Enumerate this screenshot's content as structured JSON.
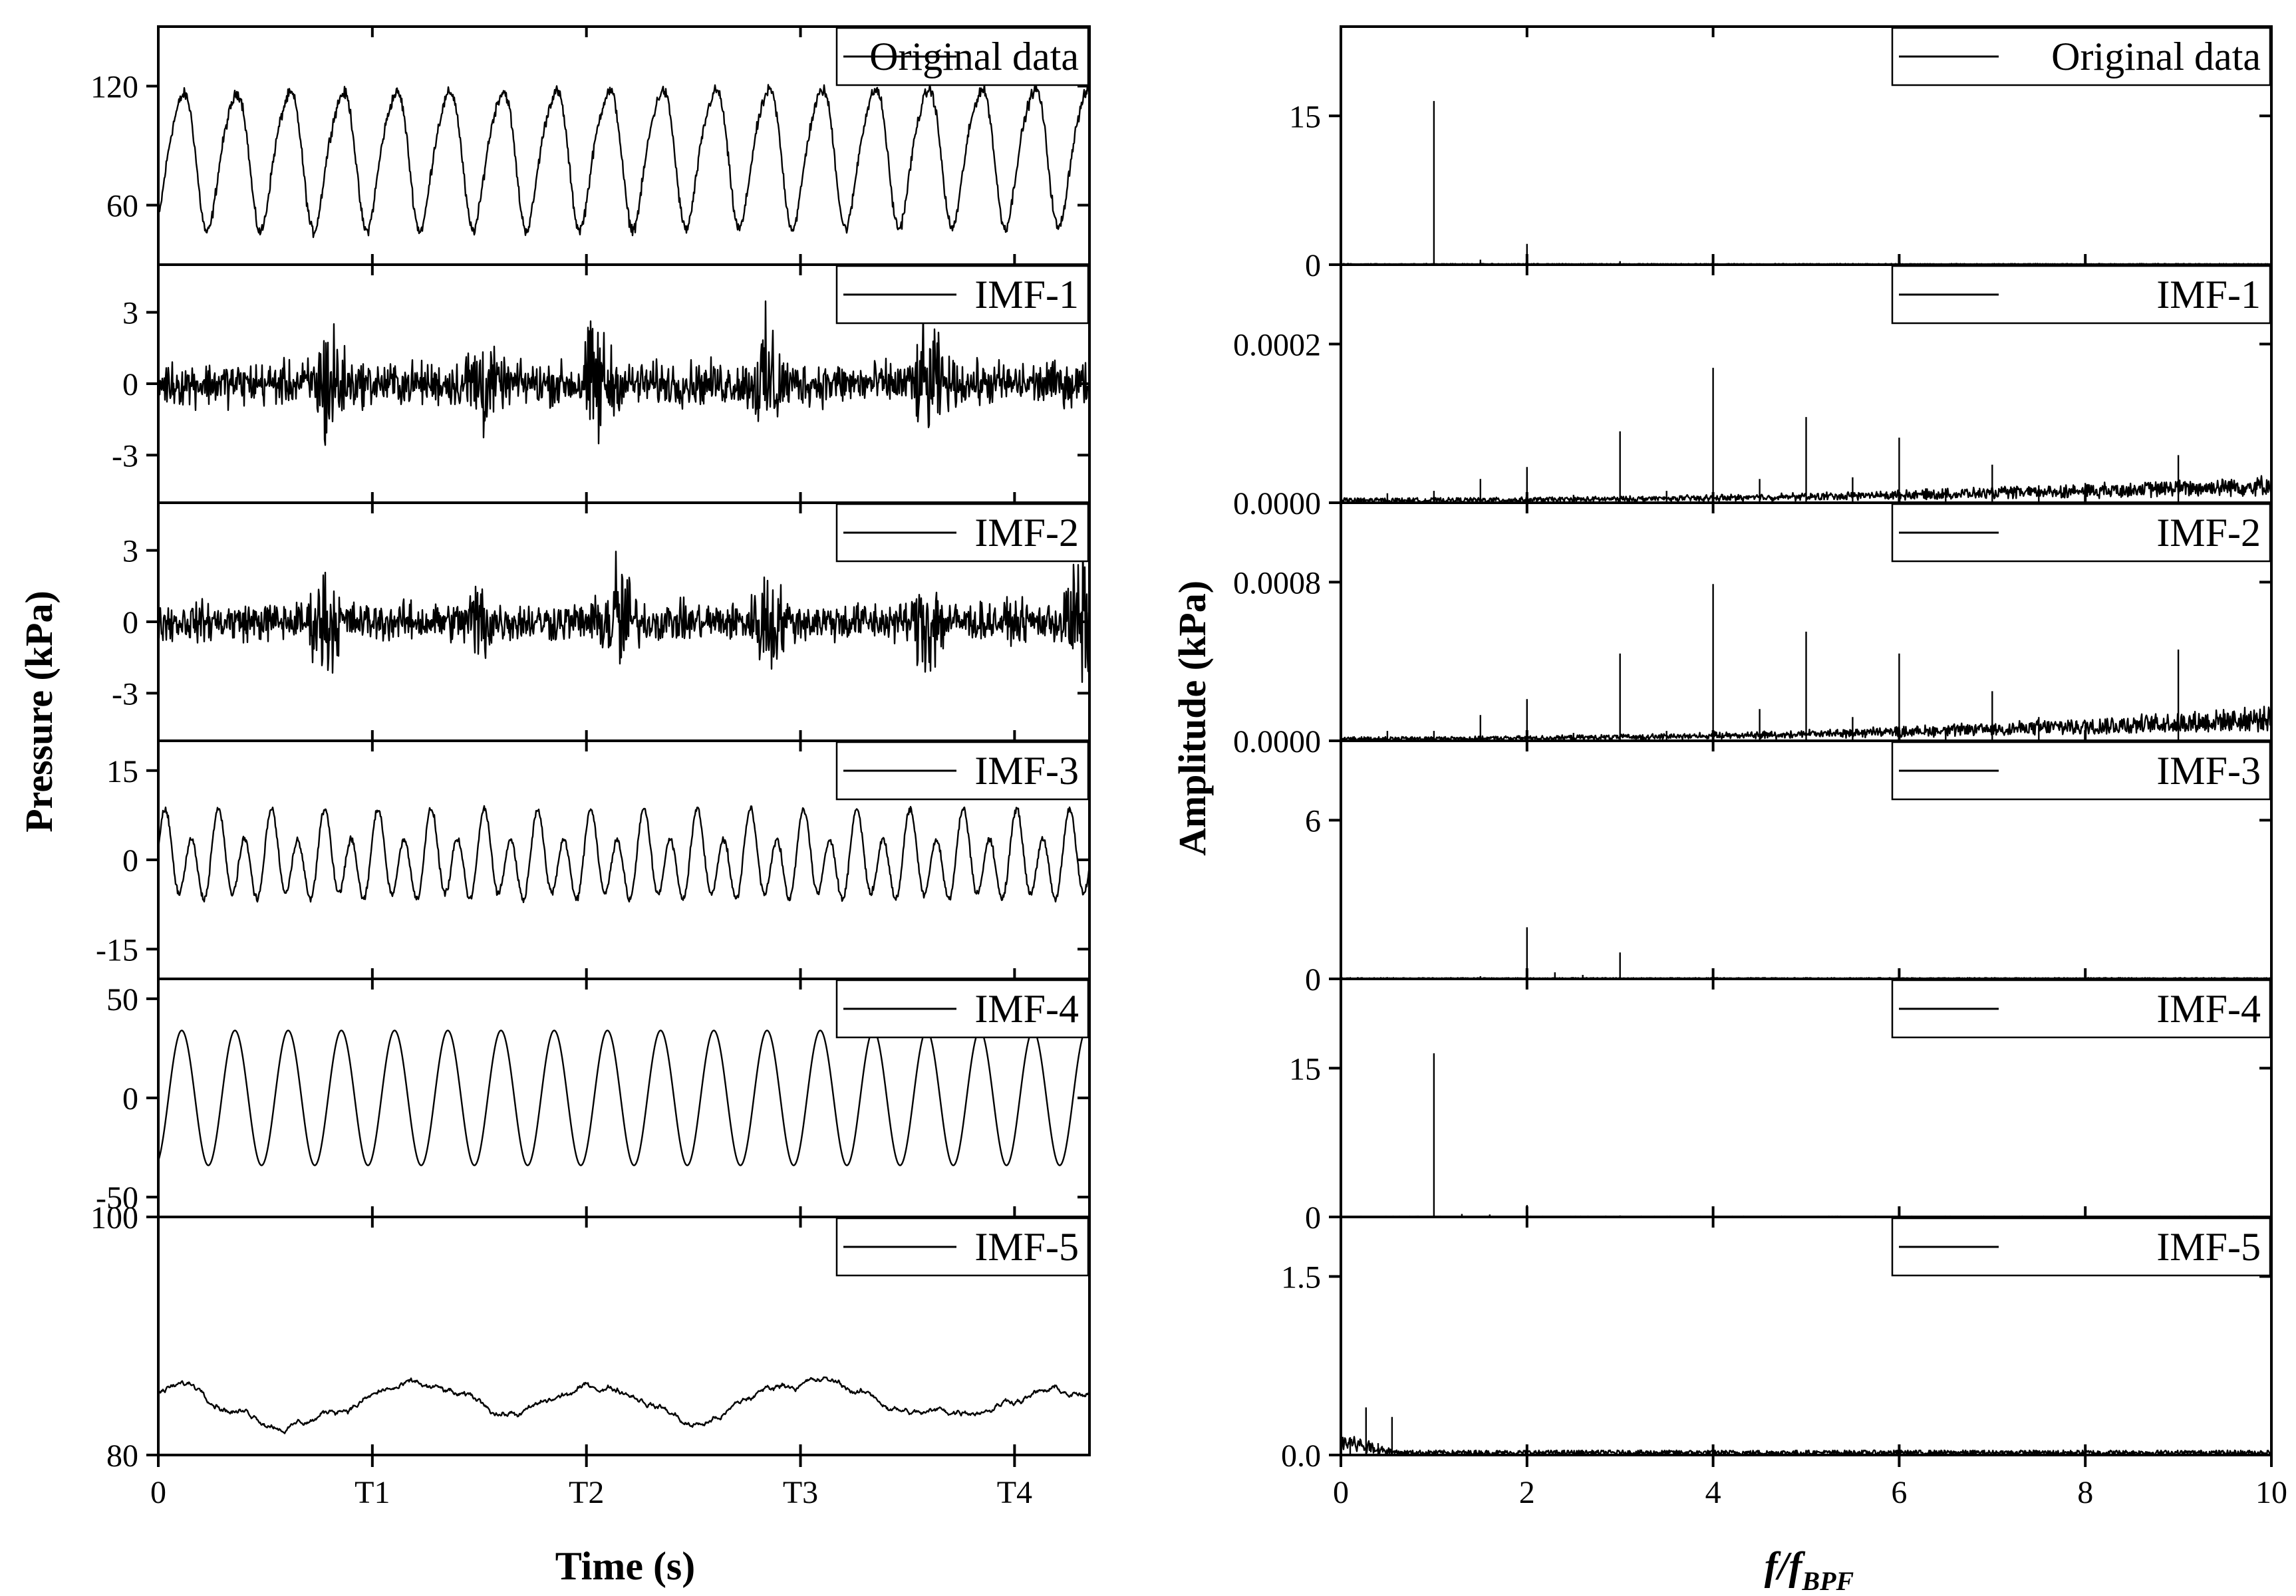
{
  "figure": {
    "left_ylabel": "Pressure (kPa)",
    "left_xlabel": "Time (s)",
    "right_ylabel": "Amplitude (kPa)",
    "right_xlabel_main": "f/f",
    "right_xlabel_sub": "BPF"
  },
  "chart_data": [
    {
      "type": "line",
      "panel": "time-domain",
      "xlabel": "Time (s)",
      "ylabel": "Pressure (kPa)",
      "x_ticks": [
        "0",
        "T1",
        "T2",
        "T3",
        "T4"
      ],
      "x_tick_positions": [
        0,
        1,
        2,
        3,
        4
      ],
      "xlim": [
        0,
        4.35
      ],
      "series": [
        {
          "name": "Original data",
          "ylim": [
            30,
            150
          ],
          "yticks": [
            60,
            120
          ],
          "ytick_labels": [
            "60",
            "120"
          ],
          "kind": "original",
          "cycles": 17.5,
          "mean": 84,
          "amp": 34,
          "noise": 2.5
        },
        {
          "name": "IMF-1",
          "ylim": [
            -5,
            5
          ],
          "yticks": [
            -3,
            0,
            3
          ],
          "ytick_labels": [
            "-3",
            "0",
            "3"
          ],
          "kind": "bursts",
          "amp": 0.9,
          "bursts": [
            [
              0.8,
              2.3
            ],
            [
              1.5,
              1.6
            ],
            [
              2.05,
              2.1
            ],
            [
              2.85,
              2.0
            ],
            [
              3.6,
              1.8
            ]
          ]
        },
        {
          "name": "IMF-2",
          "ylim": [
            -5,
            5
          ],
          "yticks": [
            -3,
            0,
            3
          ],
          "ytick_labels": [
            "-3",
            "0",
            "3"
          ],
          "kind": "bursts",
          "amp": 0.8,
          "bursts": [
            [
              0.78,
              1.7
            ],
            [
              1.5,
              1.2
            ],
            [
              2.15,
              2.4
            ],
            [
              2.85,
              1.7
            ],
            [
              3.6,
              1.9
            ],
            [
              4.3,
              2.2
            ]
          ]
        },
        {
          "name": "IMF-3",
          "ylim": [
            -20,
            20
          ],
          "yticks": [
            -15,
            0,
            15
          ],
          "ytick_labels": [
            "-15",
            "0",
            "15"
          ],
          "kind": "harmonic",
          "cycles": 35,
          "amp": 7.5
        },
        {
          "name": "IMF-4",
          "ylim": [
            -60,
            60
          ],
          "yticks": [
            -50,
            0,
            50
          ],
          "ytick_labels": [
            "-50",
            "0",
            "50"
          ],
          "kind": "sine",
          "cycles": 17.5,
          "amp": 34
        },
        {
          "name": "IMF-5",
          "ylim": [
            80,
            100
          ],
          "yticks": [
            80,
            100
          ],
          "ytick_labels": [
            "80",
            "100"
          ],
          "kind": "trend",
          "mean": 84.5
        }
      ]
    },
    {
      "type": "line",
      "panel": "frequency-domain",
      "xlabel": "f/fBPF",
      "ylabel": "Amplitude (kPa)",
      "x_ticks": [
        "0",
        "2",
        "4",
        "6",
        "8",
        "10"
      ],
      "x_tick_positions": [
        0,
        2,
        4,
        6,
        8,
        10
      ],
      "xlim": [
        0,
        10
      ],
      "series": [
        {
          "name": "Original data",
          "ylim": [
            0,
            24
          ],
          "yticks": [
            0,
            15
          ],
          "ytick_labels": [
            "0",
            "15"
          ],
          "floor": 0.05,
          "peaks": [
            [
              1,
              16.5
            ],
            [
              2,
              2.1
            ],
            [
              3,
              0.35
            ],
            [
              1.5,
              0.5
            ],
            [
              4,
              0.2
            ]
          ]
        },
        {
          "name": "IMF-1",
          "ylim": [
            0,
            0.0003
          ],
          "yticks": [
            0,
            0.0002
          ],
          "ytick_labels": [
            "0.0000",
            "0.0002"
          ],
          "floor": 3e-06,
          "rising": 1.5e-05,
          "peaks": [
            [
              0.5,
              1.2e-05
            ],
            [
              1,
              1.5e-05
            ],
            [
              1.5,
              3e-05
            ],
            [
              2,
              4.5e-05
            ],
            [
              2.5,
              1e-05
            ],
            [
              3,
              9e-05
            ],
            [
              3.5,
              1.5e-05
            ],
            [
              4,
              0.00017
            ],
            [
              4.5,
              3e-05
            ],
            [
              5,
              0.000108
            ],
            [
              5.5,
              3.2e-05
            ],
            [
              6,
              8.2e-05
            ],
            [
              6.5,
              1.2e-05
            ],
            [
              7,
              4.8e-05
            ],
            [
              7.5,
              2.2e-05
            ],
            [
              8,
              2.5e-05
            ],
            [
              9,
              6e-05
            ],
            [
              10,
              6e-05
            ]
          ]
        },
        {
          "name": "IMF-2",
          "ylim": [
            0,
            0.0012
          ],
          "yticks": [
            0,
            0.0008
          ],
          "ytick_labels": [
            "0.0000",
            "0.0008"
          ],
          "floor": 1e-05,
          "rising": 8e-05,
          "peaks": [
            [
              0.5,
              5e-05
            ],
            [
              1,
              5e-05
            ],
            [
              1.5,
              0.00013
            ],
            [
              2,
              0.00021
            ],
            [
              2.5,
              4e-05
            ],
            [
              3,
              0.00044
            ],
            [
              3.5,
              5e-05
            ],
            [
              4,
              0.00079
            ],
            [
              4.5,
              0.00016
            ],
            [
              5,
              0.00055
            ],
            [
              5.5,
              0.00012
            ],
            [
              6,
              0.00044
            ],
            [
              6.5,
              5e-05
            ],
            [
              7,
              0.00025
            ],
            [
              7.5,
              0.00012
            ],
            [
              8,
              8e-05
            ],
            [
              9,
              0.00046
            ],
            [
              10,
              0.00035
            ]
          ]
        },
        {
          "name": "IMF-3",
          "ylim": [
            0,
            9
          ],
          "yticks": [
            0,
            6
          ],
          "ytick_labels": [
            "0",
            "6"
          ],
          "floor": 0.02,
          "peaks": [
            [
              2,
              1.95
            ],
            [
              3,
              1.0
            ],
            [
              2.3,
              0.25
            ],
            [
              2.6,
              0.15
            ],
            [
              1.5,
              0.1
            ]
          ]
        },
        {
          "name": "IMF-4",
          "ylim": [
            0,
            24
          ],
          "yticks": [
            0,
            15
          ],
          "ytick_labels": [
            "0",
            "15"
          ],
          "floor": 0.03,
          "peaks": [
            [
              1,
              16.5
            ],
            [
              2,
              1.2
            ],
            [
              1.3,
              0.3
            ],
            [
              1.6,
              0.25
            ],
            [
              3,
              0.15
            ]
          ]
        },
        {
          "name": "IMF-5",
          "ylim": [
            0,
            2
          ],
          "yticks": [
            0,
            1.5
          ],
          "ytick_labels": [
            "0.0",
            "1.5"
          ],
          "floor": 0.02,
          "lowband": 0.2,
          "peaks": [
            [
              0.27,
              0.4
            ],
            [
              0.55,
              0.32
            ],
            [
              0.1,
              0.15
            ],
            [
              0.4,
              0.1
            ]
          ]
        }
      ]
    }
  ]
}
